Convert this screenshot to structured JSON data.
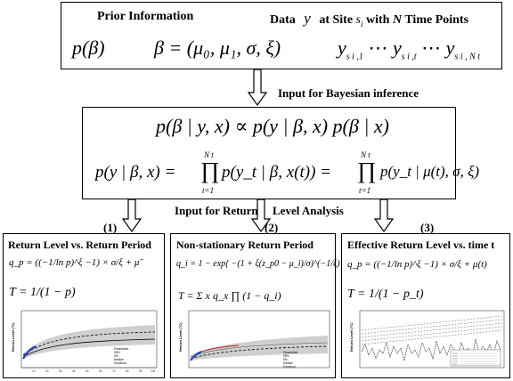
{
  "prior": {
    "title": "Prior Information",
    "data_prefix": "Data",
    "data_y": "y",
    "data_mid": "at Site",
    "data_s": "s",
    "data_i": "i",
    "data_with": "with",
    "data_N": "N",
    "data_suffix": "Time Points",
    "p_beta": "p(β)",
    "beta_eq": "β = (μ₀, μ₁, σ, ξ)",
    "y_series": "y",
    "sub1": "s i ,1",
    "sub2": "s i ,t",
    "sub3": "s i , N t",
    "dots": "⋯"
  },
  "arrow1_label": "Input for Bayesian inference",
  "bayes": {
    "eq1": "p(β | y, x) ∝ p(y | β, x) p(β | x)",
    "eq2_left": "p(y | β, x) =",
    "eq2_mid": "p(y_t | β, x(t)) =",
    "eq2_right": "p(y_t | μ(t), σ, ξ)",
    "prod": "∏",
    "t1": "t=1",
    "Nt": "N t"
  },
  "arrow2_label_a": "Input for Return",
  "arrow2_label_b": "Level Analysis",
  "panels": [
    {
      "num": "(1)",
      "title": "Return Level vs. Return Period",
      "eq1": "q_p = ((−1/ln p)^ξ −1) × σ/ξ + μ̃",
      "eq2": "T = 1/(1 − p)",
      "ylabel": "Return Level (°C)",
      "legend": [
        "Ensembles",
        "95%",
        "5%",
        "Median",
        "Empirical"
      ],
      "xticks": [
        "10",
        "20",
        "30",
        "40",
        "50",
        "60",
        "70",
        "80",
        "90",
        "100"
      ]
    },
    {
      "num": "(2)",
      "title": "Non-stationary Return Period",
      "eq1": "q_i = 1 − exp{ −(1 + ξ(z_p0 − μ_i)/σ)^(−1/ξ) }",
      "eq2": "T = Σ x q_x ∏ (1 − q_i)",
      "ylabel": "Return Level (°C)",
      "legend": [
        "Ensembles",
        "95%",
        "5%",
        "Median",
        "Empirical"
      ]
    },
    {
      "num": "(3)",
      "title": "Effective Return Level vs. time t",
      "eq1": "q_p = ((−1/ln p)^ξ −1) × σ/ξ + μ(t)",
      "eq2": "T = 1/(1 − p_t)",
      "ylabel": "Return Level (°C)"
    }
  ]
}
